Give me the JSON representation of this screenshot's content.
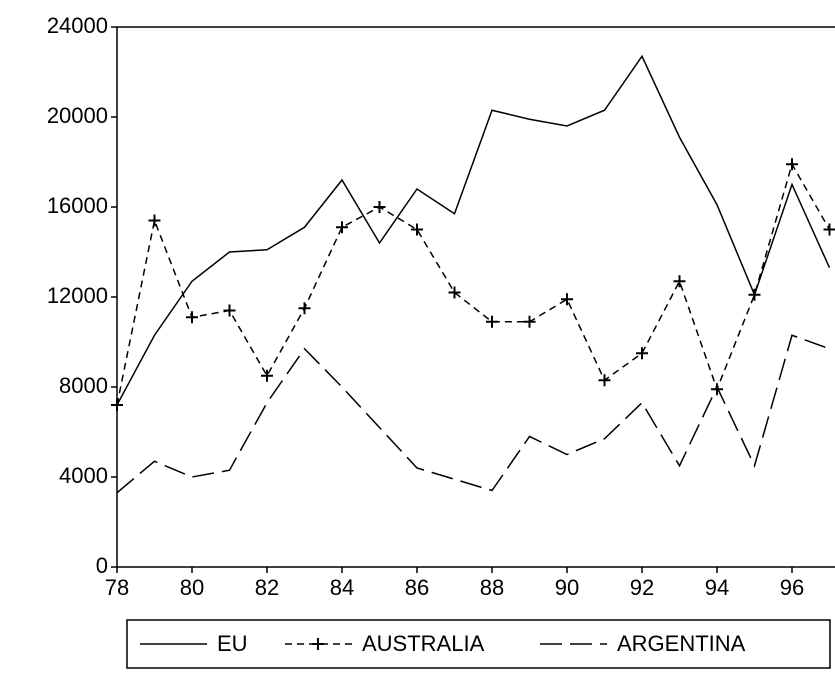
{
  "chart_data": {
    "type": "line",
    "x": [
      78,
      79,
      80,
      81,
      82,
      83,
      84,
      85,
      86,
      87,
      88,
      89,
      90,
      91,
      92,
      93,
      94,
      95,
      96,
      97
    ],
    "series": [
      {
        "name": "EU",
        "color": "#000000",
        "dash": "solid",
        "marker": "none",
        "values": [
          7200,
          10300,
          12700,
          14000,
          14100,
          15100,
          17200,
          14400,
          16800,
          15700,
          20300,
          19900,
          19600,
          20300,
          22700,
          19100,
          16100,
          12100,
          17000,
          13300
        ]
      },
      {
        "name": "AUSTRALIA",
        "color": "#000000",
        "dash": "short",
        "marker": "plus",
        "values": [
          7200,
          15400,
          11100,
          11400,
          8500,
          11500,
          15100,
          16000,
          15000,
          12200,
          10900,
          10900,
          11900,
          8300,
          9500,
          12700,
          7900,
          12100,
          17900,
          15000
        ]
      },
      {
        "name": "ARGENTINA",
        "color": "#000000",
        "dash": "long",
        "marker": "none",
        "values": [
          3300,
          4700,
          4000,
          4300,
          7300,
          9700,
          8000,
          6200,
          4400,
          3900,
          3400,
          5800,
          5000,
          5700,
          7300,
          4500,
          8000,
          4500,
          10300,
          9700
        ]
      }
    ],
    "xlim": [
      78,
      97
    ],
    "xticks": [
      78,
      80,
      82,
      84,
      86,
      88,
      90,
      92,
      94,
      96
    ],
    "ylim": [
      0,
      24000
    ],
    "yticks": [
      0,
      4000,
      8000,
      12000,
      16000,
      20000,
      24000
    ],
    "grid": false,
    "legend": "bottom"
  }
}
